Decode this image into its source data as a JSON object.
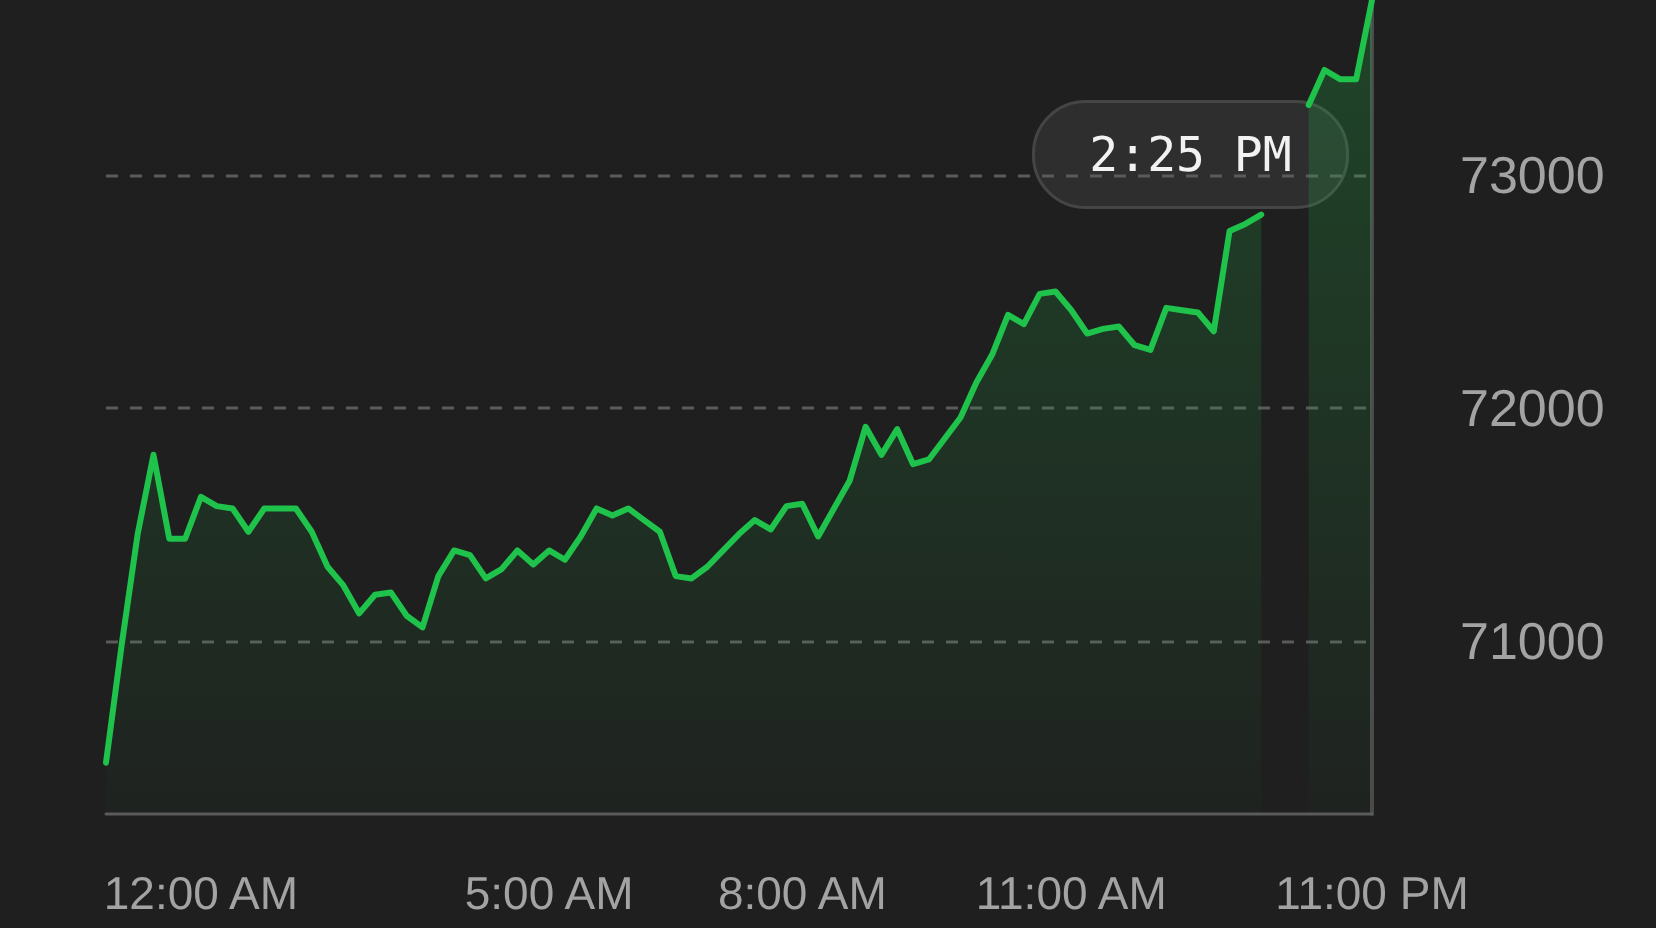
{
  "chart_data": {
    "type": "area",
    "categories": [
      null,
      null,
      null,
      null,
      null,
      null,
      "12:00 AM",
      null,
      null,
      null,
      null,
      null,
      null,
      null,
      null,
      null,
      null,
      null,
      null,
      null,
      null,
      null,
      null,
      null,
      null,
      null,
      null,
      null,
      "5:00 AM",
      null,
      null,
      null,
      null,
      null,
      null,
      null,
      null,
      null,
      null,
      null,
      null,
      null,
      null,
      null,
      "8:00 AM",
      null,
      null,
      null,
      null,
      null,
      null,
      null,
      null,
      null,
      null,
      null,
      null,
      null,
      null,
      null,
      null,
      "11:00 AM",
      null,
      null,
      null,
      null,
      null,
      null,
      null,
      null,
      null,
      null,
      null,
      null,
      null,
      null,
      null,
      null,
      null,
      null,
      "11:00 PM"
    ],
    "series": [
      {
        "color": "#1fc24a",
        "values": [
          70480,
          70990,
          71460,
          71800,
          71440,
          71440,
          71620,
          71580,
          71570,
          71470,
          71570,
          71570,
          71570,
          71470,
          71320,
          71240,
          71120,
          71200,
          71210,
          71110,
          71060,
          71280,
          71390,
          71370,
          71270,
          71310,
          71390,
          71330,
          71390,
          71350,
          71450,
          71570,
          71540,
          71570,
          71520,
          71470,
          71280,
          71270,
          71320,
          71390,
          71460,
          71520,
          71480,
          71580,
          71590,
          71450,
          71570,
          71690,
          71920,
          71800,
          71910,
          71760,
          71780,
          71870,
          71960,
          72110,
          72230,
          72400,
          72360,
          72490,
          72500,
          72420,
          72320,
          72340,
          72350,
          72270,
          72250,
          72430,
          72420,
          72410,
          72330,
          72760,
          72790,
          72830,
          null,
          null,
          73300,
          73450,
          73410,
          73410,
          73750
        ]
      }
    ],
    "ylim": [
      70260,
      73750
    ],
    "yticks": [
      71000,
      72000,
      73000
    ],
    "grid": "y",
    "line_style": "solid",
    "marker": "none",
    "annotations": [
      "2:25 PM"
    ]
  }
}
